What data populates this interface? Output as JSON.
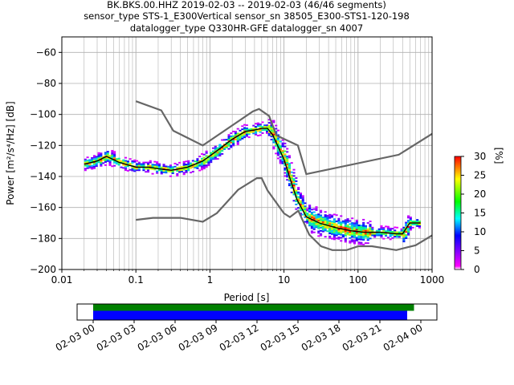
{
  "title_lines": [
    "BK.BKS.00.HHZ   2019-02-03 -- 2019-02-03  (46/46 segments)",
    "sensor_type STS-1_E300Vertical sensor_sn 38505_E300-STS1-120-198",
    "datalogger_type Q330HR-GFE datalogger_sn 4007"
  ],
  "chart_data": {
    "type": "heatmap",
    "xlabel": "Period [s]",
    "ylabel": "Power [m²/s⁴/Hz] [dB]",
    "xscale": "log",
    "xlim": [
      0.01,
      1000
    ],
    "ylim": [
      -200,
      -50
    ],
    "x_ticks": [
      0.01,
      0.1,
      1,
      10,
      100,
      1000
    ],
    "x_tick_labels": [
      "0.01",
      "0.1",
      "1",
      "10",
      "100",
      "1000"
    ],
    "y_ticks": [
      -200,
      -180,
      -160,
      -140,
      -120,
      -100,
      -80,
      -60
    ],
    "y_tick_labels": [
      "−200",
      "−180",
      "−160",
      "−140",
      "−120",
      "−100",
      "−80",
      "−60"
    ],
    "grid": true,
    "colorbar": {
      "label": "[%]",
      "range": [
        0,
        30
      ],
      "ticks": [
        0,
        5,
        10,
        15,
        20,
        25,
        30
      ],
      "colors": [
        "#ffffff",
        "#ff00ff",
        "#0000ff",
        "#00ffff",
        "#00ff00",
        "#ffff00",
        "#ff0000"
      ]
    },
    "noise_model_high": {
      "name": "NHNM",
      "x": [
        0.1,
        0.22,
        0.32,
        0.8,
        3.8,
        4.6,
        6.3,
        7.9,
        15.4,
        20,
        354.8,
        1000
      ],
      "y": [
        -91.5,
        -97.4,
        -110.5,
        -120,
        -98,
        -96.5,
        -101,
        -113.5,
        -120,
        -138.5,
        -126,
        -112.5
      ]
    },
    "noise_model_low": {
      "name": "NLNM",
      "x": [
        0.1,
        0.17,
        0.4,
        0.8,
        1.24,
        2.4,
        4.3,
        5,
        6,
        10,
        12,
        15.6,
        21.9,
        31.6,
        45,
        70,
        101,
        154,
        328,
        600,
        1000
      ],
      "y": [
        -168,
        -166.7,
        -166.7,
        -169.2,
        -163.7,
        -148.6,
        -141.1,
        -141.1,
        -149,
        -163.8,
        -166.2,
        -162.1,
        -177.5,
        -185,
        -187.5,
        -187.5,
        -185,
        -185,
        -187.5,
        -184.4,
        -178
      ]
    },
    "mode_line": {
      "x": [
        0.02,
        0.025,
        0.03,
        0.04,
        0.06,
        0.1,
        0.15,
        0.2,
        0.3,
        0.5,
        0.8,
        1.2,
        2,
        3,
        4,
        5,
        6,
        7,
        8,
        10,
        12,
        15,
        20,
        30,
        50,
        80,
        120,
        200,
        330,
        400,
        500,
        600,
        700
      ],
      "y": [
        -132,
        -131,
        -130,
        -127,
        -131,
        -134,
        -134,
        -135,
        -136,
        -134,
        -130,
        -124,
        -116,
        -111,
        -110,
        -109,
        -109,
        -113,
        -119,
        -129,
        -141,
        -155,
        -166,
        -170,
        -173,
        -175,
        -176,
        -176,
        -177,
        -177,
        -170,
        -170,
        -170
      ]
    },
    "time_axis": {
      "tick_labels": [
        "02-03 00",
        "02-03 03",
        "02-03 06",
        "02-03 09",
        "02-03 12",
        "02-03 15",
        "02-03 18",
        "02-03 21",
        "02-04 00"
      ],
      "data_coverage": {
        "start_hour": 0,
        "end_hour": 23.5,
        "color": "#008000"
      },
      "psd_coverage": {
        "start_hour": 0,
        "end_hour": 23.0,
        "color": "#0000ff"
      }
    }
  }
}
